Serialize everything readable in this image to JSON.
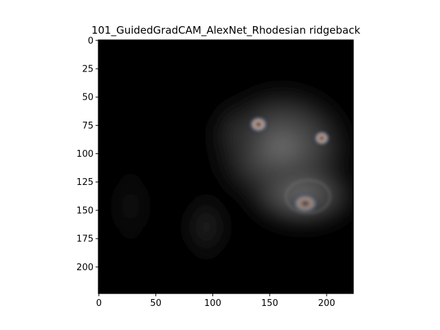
{
  "chart_data": {
    "type": "heatmap",
    "title": "101_GuidedGradCAM_AlexNet_Rhodesian ridgeback",
    "xlabel": "",
    "ylabel": "",
    "image_size": [
      224,
      224
    ],
    "xlim": [
      -0.5,
      223.5
    ],
    "ylim": [
      223.5,
      -0.5
    ],
    "y_axis_inverted": true,
    "x_ticks": [
      0,
      50,
      100,
      150,
      200
    ],
    "y_ticks": [
      0,
      25,
      50,
      75,
      100,
      125,
      150,
      175,
      200
    ],
    "grid": false,
    "legend": "none",
    "colors": {
      "background": "#000000",
      "saliency_glow": "#6b6b6b",
      "eye_highlight": "#b0a08a",
      "axis": "#000000"
    }
  }
}
